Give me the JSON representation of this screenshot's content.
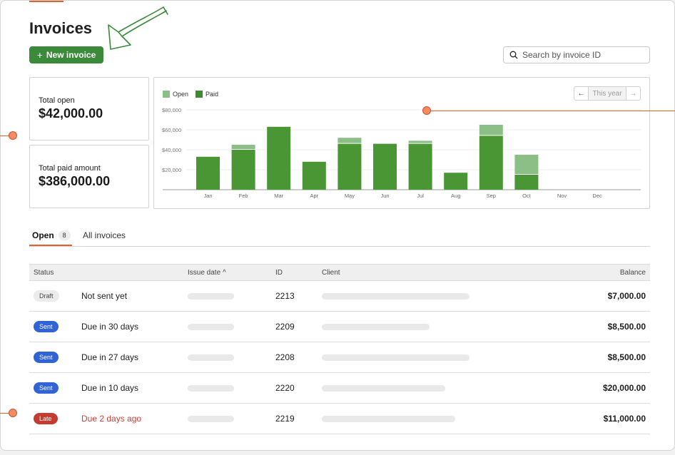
{
  "page": {
    "title": "Invoices"
  },
  "actions": {
    "new_invoice_label": "New invoice"
  },
  "search": {
    "placeholder": "Search by invoice ID"
  },
  "summary": {
    "total_open_label": "Total open",
    "total_open_value": "$42,000.00",
    "total_paid_label": "Total paid amount",
    "total_paid_value": "$386,000.00"
  },
  "chart_nav": {
    "prev_icon": "arrow-left-icon",
    "period_label": "This year",
    "next_icon": "arrow-right-icon"
  },
  "colors": {
    "paid": "#4a9635",
    "open": "#8cbf86",
    "accent": "#e0622d",
    "primary_button": "#3a8a3a"
  },
  "chart_data": {
    "type": "bar",
    "stacked": true,
    "categories": [
      "Jan",
      "Feb",
      "Mar",
      "Apr",
      "May",
      "Jun",
      "Jul",
      "Aug",
      "Sep",
      "Oct",
      "Nov",
      "Dec"
    ],
    "series": [
      {
        "name": "Paid",
        "values": [
          33000,
          40000,
          63000,
          28000,
          46000,
          46000,
          46000,
          17000,
          54000,
          15000,
          0,
          0
        ]
      },
      {
        "name": "Open",
        "values": [
          0,
          5000,
          0,
          0,
          6000,
          0,
          3000,
          0,
          11000,
          20000,
          0,
          0
        ]
      }
    ],
    "y_ticks": [
      "$20,000",
      "$40,000",
      "$60,000",
      "$80,000"
    ],
    "ylim": [
      0,
      80000
    ],
    "grid": true,
    "legend": "top-left"
  },
  "tabs": [
    {
      "label": "Open",
      "count": "8"
    },
    {
      "label": "All invoices"
    }
  ],
  "table": {
    "columns": {
      "status": "Status",
      "issue_date": "Issue date",
      "id": "ID",
      "client": "Client",
      "balance": "Balance"
    },
    "rows": [
      {
        "status": "Draft",
        "due": "Not sent yet",
        "id": "2213",
        "balance": "$7,000.00"
      },
      {
        "status": "Sent",
        "due": "Due in 30 days",
        "id": "2209",
        "balance": "$8,500.00"
      },
      {
        "status": "Sent",
        "due": "Due in 27 days",
        "id": "2208",
        "balance": "$8,500.00"
      },
      {
        "status": "Sent",
        "due": "Due in 10 days",
        "id": "2220",
        "balance": "$20,000.00"
      },
      {
        "status": "Late",
        "due": "Due 2 days ago",
        "id": "2219",
        "balance": "$11,000.00"
      }
    ]
  }
}
